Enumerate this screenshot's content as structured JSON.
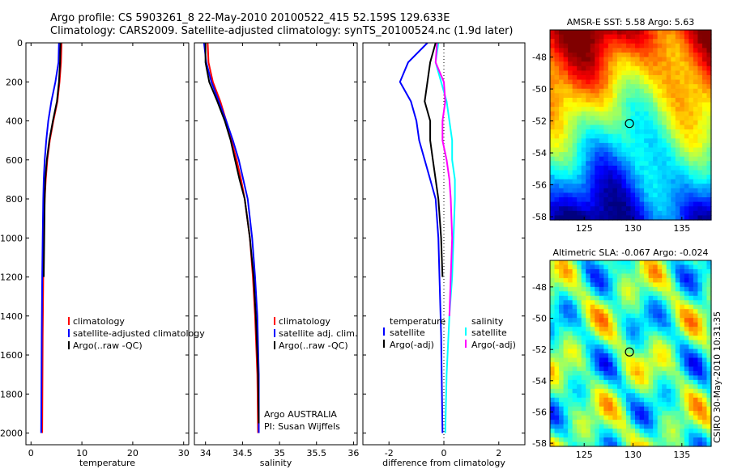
{
  "header": {
    "line1": "Argo profile: CS 5903261_8 22-May-2010 20100522_415 52.159S 129.633E",
    "line2": "Climatology: CARS2009. Satellite-adjusted climatology: synTS_20100524.nc (1.9d later)"
  },
  "side_credit": "CSIRO 30-May-2010 10:31:35",
  "colors": {
    "climatology": "#ff0000",
    "satellite": "#0000ff",
    "argo": "#000000",
    "sat_sal_diff": "#00ffff",
    "argo_sal_diff": "#ff00ff"
  },
  "chart_data": [
    {
      "type": "line",
      "xlabel": "temperature",
      "ylabel": "",
      "xlim": [
        -1,
        31
      ],
      "ylim": [
        2060,
        0
      ],
      "y_reversed": true,
      "xticks": [
        "0",
        "10",
        "20",
        "30"
      ],
      "yticks": [
        "0",
        "200",
        "400",
        "600",
        "800",
        "1000",
        "1200",
        "1400",
        "1600",
        "1800",
        "2000"
      ],
      "legend": [
        "climatology",
        "satellite-adjusted climatology",
        "Argo(..raw -QC)"
      ],
      "series": [
        {
          "name": "climatology",
          "color": "#ff0000",
          "x": [
            6.0,
            5.9,
            5.6,
            5.2,
            4.4,
            3.7,
            3.2,
            2.9,
            2.7,
            2.5,
            2.4,
            2.3,
            2.2
          ],
          "y": [
            0,
            100,
            200,
            300,
            400,
            500,
            600,
            700,
            800,
            1000,
            1200,
            1500,
            2000
          ]
        },
        {
          "name": "satellite-adjusted climatology",
          "color": "#0000ff",
          "x": [
            5.5,
            5.4,
            4.8,
            4.0,
            3.4,
            3.0,
            2.7,
            2.5,
            2.4,
            2.3,
            2.2,
            2.1,
            2.0
          ],
          "y": [
            0,
            100,
            200,
            300,
            400,
            500,
            600,
            700,
            800,
            1000,
            1200,
            1500,
            2000
          ]
        },
        {
          "name": "Argo(..raw -QC)",
          "color": "#000000",
          "x": [
            5.8,
            5.7,
            5.5,
            5.1,
            4.3,
            3.6,
            3.1,
            2.8,
            2.7,
            2.6,
            2.5
          ],
          "y": [
            0,
            100,
            200,
            300,
            400,
            500,
            600,
            700,
            800,
            1000,
            1200
          ]
        }
      ]
    },
    {
      "type": "line",
      "xlabel": "salinity",
      "xlim": [
        33.85,
        36.05
      ],
      "ylim": [
        2060,
        0
      ],
      "y_reversed": true,
      "xticks": [
        "34",
        "34.5",
        "35",
        "35.5",
        "36"
      ],
      "legend": [
        "climatology",
        "satellite adj. clim.",
        "Argo(..raw -QC)"
      ],
      "annotation": [
        "Argo AUSTRALIA",
        "PI: Susan Wijffels"
      ],
      "series": [
        {
          "name": "climatology",
          "color": "#ff0000",
          "x": [
            34.03,
            34.04,
            34.1,
            34.2,
            34.28,
            34.35,
            34.42,
            34.48,
            34.53,
            34.6,
            34.64,
            34.67,
            34.7,
            34.71
          ],
          "y": [
            0,
            100,
            200,
            300,
            400,
            500,
            600,
            700,
            800,
            1000,
            1200,
            1400,
            1700,
            2000
          ]
        },
        {
          "name": "satellite adj. clim.",
          "color": "#0000ff",
          "x": [
            33.98,
            34.01,
            34.08,
            34.18,
            34.28,
            34.37,
            34.45,
            34.51,
            34.57,
            34.63,
            34.67,
            34.7,
            34.72,
            34.72
          ],
          "y": [
            0,
            100,
            200,
            300,
            400,
            500,
            600,
            700,
            800,
            1000,
            1200,
            1400,
            1700,
            2000
          ]
        },
        {
          "name": "Argo(..raw -QC)",
          "color": "#000000",
          "x": [
            34.0,
            34.0,
            34.05,
            34.16,
            34.26,
            34.34,
            34.4,
            34.46,
            34.53,
            34.6,
            34.65,
            34.68,
            34.71,
            34.72
          ],
          "y": [
            0,
            100,
            200,
            300,
            400,
            500,
            600,
            700,
            800,
            1000,
            1200,
            1400,
            1700,
            1950
          ]
        }
      ]
    },
    {
      "type": "line",
      "xlabel": "difference from climatology",
      "xlim": [
        -2.95,
        2.95
      ],
      "ylim": [
        2060,
        0
      ],
      "y_reversed": true,
      "xticks": [
        "-2",
        "0",
        "2"
      ],
      "legend": [
        "temperature",
        "satellite",
        "Argo(-adj)",
        "salinity",
        "satellite",
        "Argo(-adj)"
      ],
      "series": [
        {
          "name": "temperature satellite",
          "color": "#0000ff",
          "x": [
            -0.6,
            -1.3,
            -1.6,
            -1.2,
            -1.0,
            -0.9,
            -0.7,
            -0.5,
            -0.3,
            -0.2,
            -0.1,
            -0.05
          ],
          "y": [
            0,
            100,
            200,
            300,
            400,
            500,
            600,
            700,
            800,
            1000,
            1500,
            2000
          ]
        },
        {
          "name": "temperature Argo(-adj)",
          "color": "#000000",
          "x": [
            -0.3,
            -0.5,
            -0.6,
            -0.7,
            -0.5,
            -0.5,
            -0.4,
            -0.3,
            -0.2,
            -0.1,
            -0.05
          ],
          "y": [
            0,
            100,
            200,
            300,
            400,
            500,
            600,
            700,
            800,
            1000,
            1200
          ]
        },
        {
          "name": "salinity satellite",
          "color": "#00ffff",
          "x": [
            -0.2,
            -0.3,
            -0.1,
            0.1,
            0.2,
            0.3,
            0.3,
            0.4,
            0.4,
            0.35,
            0.3,
            0.2,
            0.1,
            0.05
          ],
          "y": [
            0,
            100,
            200,
            300,
            400,
            500,
            600,
            700,
            800,
            1000,
            1200,
            1400,
            1700,
            2000
          ]
        },
        {
          "name": "salinity Argo(-adj)",
          "color": "#ff00ff",
          "x": [
            -0.25,
            -0.3,
            0.0,
            0.05,
            -0.05,
            -0.05,
            0.1,
            0.2,
            0.25,
            0.3,
            0.25,
            0.2
          ],
          "y": [
            0,
            100,
            200,
            300,
            400,
            500,
            600,
            700,
            800,
            1000,
            1200,
            1400
          ]
        }
      ]
    },
    {
      "type": "heatmap",
      "title": "AMSR-E SST: 5.58 Argo: 5.63",
      "xlim": [
        121.5,
        138
      ],
      "ylim": [
        -58.2,
        -46.3
      ],
      "xticks": [
        "125",
        "130",
        "135"
      ],
      "yticks": [
        "-48",
        "-50",
        "-52",
        "-54",
        "-56",
        "-58"
      ],
      "marker": {
        "lon": 129.633,
        "lat": -52.159
      }
    },
    {
      "type": "heatmap",
      "title": "Altimetric SLA: -0.067 Argo: -0.024",
      "xlim": [
        121.5,
        138
      ],
      "ylim": [
        -58.2,
        -46.3
      ],
      "xticks": [
        "125",
        "130",
        "135"
      ],
      "yticks": [
        "-48",
        "-50",
        "-52",
        "-54",
        "-56",
        "-58"
      ],
      "marker": {
        "lon": 129.633,
        "lat": -52.159
      }
    }
  ]
}
